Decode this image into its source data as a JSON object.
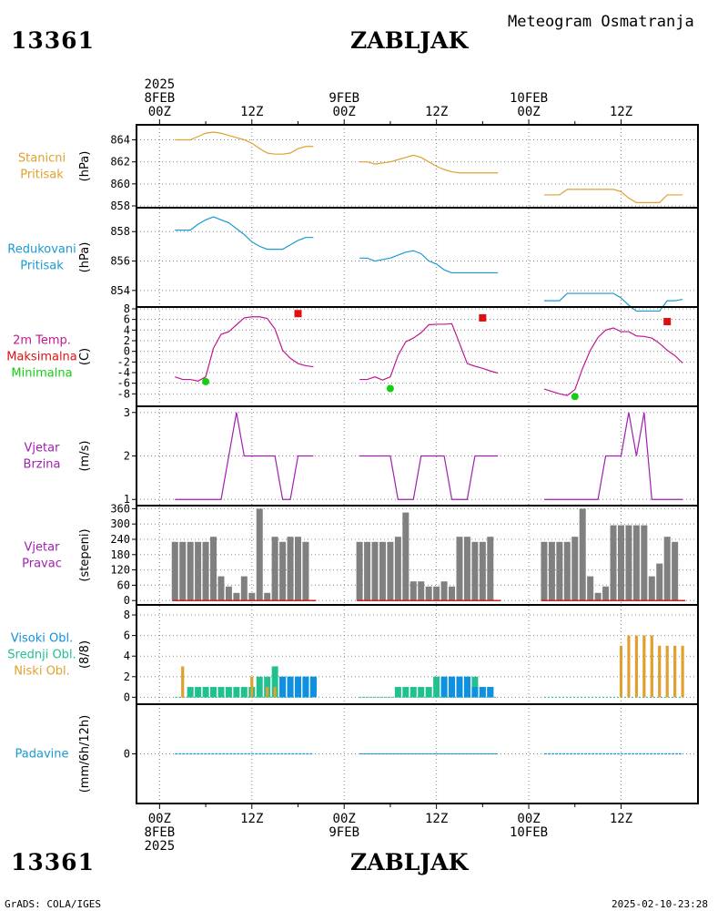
{
  "header": {
    "station_id": "13361",
    "station_name": "ZABLJAK",
    "product_title": "Meteogram Osmatranja",
    "credit": "GrADS: COLA/IGES",
    "timestamp": "2025-02-10-23:28"
  },
  "time_axis": {
    "year": "2025",
    "top_labels": [
      {
        "t": 0,
        "lines": [
          "2025",
          "8FEB",
          "00Z"
        ]
      },
      {
        "t": 12,
        "lines": [
          "12Z"
        ]
      },
      {
        "t": 24,
        "lines": [
          "9FEB",
          "00Z"
        ]
      },
      {
        "t": 36,
        "lines": [
          "12Z"
        ]
      },
      {
        "t": 48,
        "lines": [
          "10FEB",
          "00Z"
        ]
      },
      {
        "t": 60,
        "lines": [
          "12Z"
        ]
      }
    ],
    "bottom_labels": [
      {
        "t": 0,
        "lines": [
          "00Z",
          "8FEB",
          "2025"
        ]
      },
      {
        "t": 12,
        "lines": [
          "12Z"
        ]
      },
      {
        "t": 24,
        "lines": [
          "00Z",
          "9FEB"
        ]
      },
      {
        "t": 36,
        "lines": [
          "12Z"
        ]
      },
      {
        "t": 48,
        "lines": [
          "00Z",
          "10FEB"
        ]
      },
      {
        "t": 60,
        "lines": [
          "12Z"
        ]
      }
    ],
    "range_hours": [
      -3,
      70
    ]
  },
  "panels": {
    "station_pressure": {
      "labels": [
        "Stanicni",
        "Pritisak"
      ],
      "unit": "(hPa)",
      "color": "#e0a030"
    },
    "reduced_pressure": {
      "labels": [
        "Redukovani",
        "Pritisak"
      ],
      "unit": "(hPa)",
      "color": "#1a9ad0"
    },
    "temperature": {
      "labels": [
        "2m Temp.",
        "Maksimalna",
        "Minimalna"
      ],
      "colors": [
        "#c01890",
        "#e01010",
        "#10d010"
      ],
      "unit": "(C)"
    },
    "wind_speed": {
      "labels": [
        "Vjetar",
        "Brzina"
      ],
      "unit": "(m/s)",
      "color": "#a020b0"
    },
    "wind_direction": {
      "labels": [
        "Vjetar",
        "Pravac"
      ],
      "unit": "(stepeni)",
      "color": "#a020b0"
    },
    "clouds": {
      "labels": [
        "Visoki Obl.",
        "Srednji Obl.",
        "Niski Obl."
      ],
      "colors": [
        "#1090e0",
        "#20c090",
        "#e0a030"
      ],
      "unit": "(8/8)"
    },
    "precipitation": {
      "labels": [
        "Padavine"
      ],
      "unit": "(mm/6h/12h)",
      "color": "#1a9ad0"
    }
  },
  "chart_data": [
    {
      "type": "line",
      "name": "station_pressure",
      "ylabel": "(hPa)",
      "ylim": [
        858,
        865.2
      ],
      "yticks": [
        858,
        860,
        862,
        864
      ],
      "segments": [
        {
          "x": [
            2,
            4,
            5,
            6,
            7,
            8,
            9,
            10,
            11,
            12,
            13,
            14,
            15,
            16,
            17,
            18,
            19,
            20
          ],
          "y": [
            864,
            864,
            864.3,
            864.6,
            864.7,
            864.6,
            864.4,
            864.2,
            864,
            863.7,
            863.2,
            862.8,
            862.7,
            862.7,
            862.8,
            863.2,
            863.4,
            863.4
          ]
        },
        {
          "x": [
            26,
            27,
            28,
            29,
            30,
            31,
            32,
            33,
            34,
            35,
            36,
            37,
            38,
            39,
            40,
            41,
            42,
            43,
            44
          ],
          "y": [
            862,
            862,
            861.8,
            861.9,
            862,
            862.2,
            862.4,
            862.6,
            862.4,
            862,
            861.6,
            861.3,
            861.1,
            861,
            861,
            861,
            861,
            861,
            861
          ]
        },
        {
          "x": [
            50,
            52,
            53,
            54,
            55,
            56,
            57,
            58,
            59,
            60,
            61,
            62,
            63,
            64,
            65,
            66,
            67,
            68
          ],
          "y": [
            859,
            859,
            859.5,
            859.5,
            859.5,
            859.5,
            859.5,
            859.5,
            859.5,
            859.3,
            858.7,
            858.3,
            858.3,
            858.3,
            858.3,
            859,
            859,
            859
          ]
        }
      ]
    },
    {
      "type": "line",
      "name": "reduced_pressure",
      "ylabel": "(hPa)",
      "ylim": [
        853,
        859.5
      ],
      "yticks": [
        854,
        856,
        858
      ],
      "segments": [
        {
          "x": [
            2,
            4,
            5,
            6,
            7,
            8,
            9,
            10,
            11,
            12,
            13,
            14,
            15,
            16,
            17,
            18,
            19,
            20
          ],
          "y": [
            858.1,
            858.1,
            858.5,
            858.8,
            859,
            858.8,
            858.6,
            858.2,
            857.8,
            857.3,
            857,
            856.8,
            856.8,
            856.8,
            857.1,
            857.4,
            857.6,
            857.6
          ]
        },
        {
          "x": [
            26,
            27,
            28,
            29,
            30,
            31,
            32,
            33,
            34,
            35,
            36,
            37,
            38,
            39,
            40,
            41,
            42,
            43,
            44
          ],
          "y": [
            856.2,
            856.2,
            856,
            856.1,
            856.2,
            856.4,
            856.6,
            856.7,
            856.5,
            856,
            855.8,
            855.4,
            855.2,
            855.2,
            855.2,
            855.2,
            855.2,
            855.2,
            855.2
          ]
        },
        {
          "x": [
            50,
            52,
            53,
            54,
            55,
            56,
            57,
            58,
            59,
            60,
            61,
            62,
            63,
            64,
            65,
            66,
            67,
            68
          ],
          "y": [
            853.3,
            853.3,
            853.8,
            853.8,
            853.8,
            853.8,
            853.8,
            853.8,
            853.8,
            853.5,
            853,
            852.6,
            852.6,
            852.6,
            852.6,
            853.3,
            853.3,
            853.4
          ]
        }
      ]
    },
    {
      "type": "line",
      "name": "temperature",
      "ylabel": "(C)",
      "ylim": [
        -10,
        8
      ],
      "yticks": [
        -8,
        -6,
        -4,
        -2,
        0,
        2,
        4,
        6,
        8
      ],
      "series": [
        {
          "name": "2m Temp.",
          "segments": [
            {
              "x": [
                2,
                3,
                4,
                5,
                6,
                7,
                8,
                9,
                10,
                11,
                12,
                13,
                14,
                15,
                16,
                17,
                18,
                19,
                20
              ],
              "y": [
                -4.8,
                -5.3,
                -5.3,
                -5.6,
                -4.8,
                0.6,
                3.2,
                3.7,
                5,
                6.3,
                6.5,
                6.5,
                6.2,
                4.2,
                0.2,
                -1.3,
                -2.3,
                -2.7,
                -2.9
              ]
            },
            {
              "x": [
                26,
                27,
                28,
                29,
                30,
                31,
                32,
                33,
                34,
                35,
                36,
                37,
                38,
                39,
                40,
                41,
                42,
                43,
                44
              ],
              "y": [
                -5.3,
                -5.3,
                -4.8,
                -5.4,
                -4.8,
                -0.8,
                1.8,
                2.5,
                3.5,
                5,
                5.1,
                5.1,
                5.2,
                1.5,
                -2.3,
                -2.8,
                -3.2,
                -3.7,
                -4.1
              ]
            },
            {
              "x": [
                50,
                52,
                53,
                54,
                55,
                56,
                57,
                58,
                59,
                60,
                61,
                62,
                63,
                64,
                65,
                66,
                67,
                68
              ],
              "y": [
                -7.1,
                -8,
                -8.3,
                -7.2,
                -3.2,
                0.2,
                2.6,
                4,
                4.4,
                3.7,
                3.7,
                2.9,
                2.8,
                2.5,
                1.5,
                0.2,
                -0.8,
                -2.2
              ]
            }
          ]
        },
        {
          "name": "Maksimalna",
          "x": [
            18,
            42,
            66
          ],
          "y": [
            7.1,
            6.3,
            5.6
          ]
        },
        {
          "name": "Minimalna",
          "x": [
            6,
            30,
            54
          ],
          "y": [
            -5.7,
            -7,
            -8.5
          ]
        }
      ]
    },
    {
      "type": "line",
      "name": "wind_speed",
      "ylabel": "(m/s)",
      "ylim": [
        0.9,
        3.1
      ],
      "yticks": [
        1,
        2,
        3
      ],
      "segments": [
        {
          "x": [
            2,
            3,
            4,
            5,
            6,
            7,
            8,
            9,
            10,
            11,
            12,
            13,
            14,
            15,
            16,
            17,
            18,
            19,
            20
          ],
          "y": [
            1,
            1,
            1,
            1,
            1,
            1,
            1,
            2,
            3,
            2,
            2,
            2,
            2,
            2,
            1,
            1,
            2,
            2,
            2
          ]
        },
        {
          "x": [
            26,
            27,
            28,
            29,
            30,
            31,
            32,
            33,
            34,
            35,
            36,
            37,
            38,
            39,
            40,
            41,
            42,
            43,
            44
          ],
          "y": [
            2,
            2,
            2,
            2,
            2,
            1,
            1,
            1,
            2,
            2,
            2,
            2,
            1,
            1,
            1,
            2,
            2,
            2,
            2
          ]
        },
        {
          "x": [
            50,
            52,
            53,
            54,
            55,
            56,
            57,
            58,
            59,
            60,
            61,
            62,
            63,
            64,
            65,
            66,
            67,
            68
          ],
          "y": [
            1,
            1,
            1,
            1,
            1,
            1,
            1,
            2,
            2,
            2,
            3,
            2,
            3,
            1,
            1,
            1,
            1,
            1
          ]
        }
      ]
    },
    {
      "type": "bar",
      "name": "wind_direction",
      "ylabel": "(stepeni)",
      "ylim": [
        -10,
        365
      ],
      "yticks": [
        0,
        60,
        120,
        180,
        240,
        300,
        360
      ],
      "x": [
        2,
        3,
        4,
        5,
        6,
        7,
        8,
        9,
        10,
        11,
        12,
        13,
        14,
        15,
        16,
        17,
        18,
        19,
        20,
        26,
        27,
        28,
        29,
        30,
        31,
        32,
        33,
        34,
        35,
        36,
        37,
        38,
        39,
        40,
        41,
        42,
        43,
        44,
        50,
        51,
        52,
        53,
        54,
        55,
        56,
        57,
        58,
        59,
        60,
        61,
        62,
        63,
        64,
        65,
        66,
        67,
        68
      ],
      "values": [
        230,
        230,
        230,
        230,
        230,
        250,
        95,
        55,
        30,
        95,
        30,
        360,
        30,
        250,
        230,
        250,
        250,
        230,
        0,
        230,
        230,
        230,
        230,
        230,
        250,
        345,
        75,
        75,
        55,
        55,
        75,
        55,
        250,
        250,
        230,
        230,
        250,
        0,
        230,
        230,
        230,
        230,
        250,
        360,
        95,
        30,
        55,
        295,
        295,
        295,
        295,
        295,
        95,
        145,
        250,
        230,
        0
      ],
      "calm_marker": {
        "color": "#d02020"
      }
    },
    {
      "type": "bar",
      "name": "clouds",
      "ylabel": "(8/8)",
      "ylim": [
        -0.5,
        8.8
      ],
      "yticks": [
        0,
        2,
        4,
        6,
        8
      ],
      "series": [
        {
          "name": "Niski Obl.",
          "x": [
            3,
            12,
            14,
            15,
            60,
            61,
            62,
            63,
            64,
            65,
            66,
            67,
            68
          ],
          "values": [
            3,
            2,
            1,
            1,
            5,
            6,
            6,
            6,
            6,
            5,
            5,
            5,
            5
          ]
        },
        {
          "name": "Srednji Obl.",
          "x": [
            4,
            5,
            6,
            7,
            8,
            9,
            10,
            11,
            12,
            13,
            14,
            15,
            16,
            17,
            18,
            19,
            20,
            31,
            32,
            33,
            34,
            35,
            36,
            37,
            38,
            39,
            40,
            41,
            42,
            43
          ],
          "values": [
            1,
            1,
            1,
            1,
            1,
            1,
            1,
            1,
            1,
            2,
            2,
            3,
            2,
            2,
            2,
            2,
            2,
            1,
            1,
            1,
            1,
            1,
            2,
            2,
            2,
            2,
            2,
            2,
            1,
            1
          ]
        },
        {
          "name": "Visoki Obl.",
          "x": [
            16,
            17,
            18,
            19,
            20,
            37,
            38,
            39,
            40,
            41,
            42,
            43
          ],
          "values": [
            2,
            2,
            2,
            2,
            2,
            2,
            2,
            2,
            2,
            1,
            1,
            1
          ]
        }
      ]
    },
    {
      "type": "line",
      "name": "precipitation",
      "ylabel": "(mm/6h/12h)",
      "ylim": [
        -5,
        5
      ],
      "yticks": [
        0
      ],
      "segments": [
        {
          "x": [
            2,
            20
          ],
          "y": [
            0,
            0
          ]
        },
        {
          "x": [
            26,
            44
          ],
          "y": [
            0,
            0
          ]
        },
        {
          "x": [
            50,
            68
          ],
          "y": [
            0,
            0
          ]
        }
      ]
    }
  ]
}
